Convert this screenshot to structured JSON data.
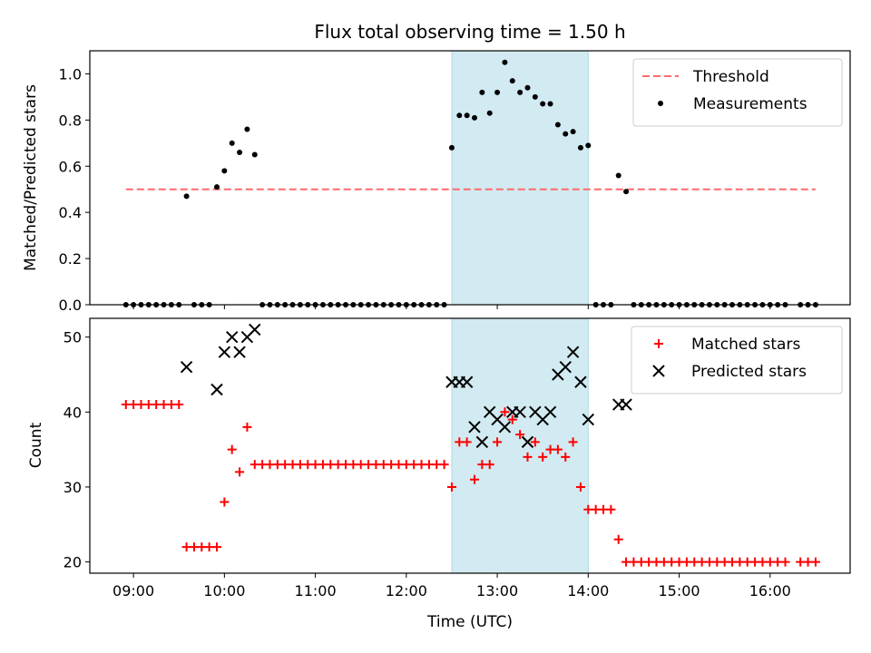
{
  "chart_data": {
    "title": "Flux total observing time = 1.50 h",
    "xlabel": "Time (UTC)",
    "x_ticks": [
      "09:00",
      "10:00",
      "11:00",
      "12:00",
      "13:00",
      "14:00",
      "15:00",
      "16:00"
    ],
    "shaded_interval": [
      "12:30",
      "14:00"
    ],
    "shade_color": "#add8e6",
    "panels": [
      {
        "type": "scatter",
        "ylabel": "Matched/Predicted stars",
        "ylim": [
          0,
          1.1
        ],
        "y_ticks": [
          "0.0",
          "0.2",
          "0.4",
          "0.6",
          "0.8",
          "1.0"
        ],
        "legend_position": "upper-right",
        "threshold": {
          "name": "Threshold",
          "value": 0.5,
          "x_range": [
            "08:55",
            "16:30"
          ],
          "color": "#ff6b6b",
          "style": "dashed"
        },
        "series": [
          {
            "name": "Measurements",
            "color": "#000000",
            "marker": "dot",
            "points": [
              [
                "08:55",
                0
              ],
              [
                "09:00",
                0
              ],
              [
                "09:05",
                0
              ],
              [
                "09:10",
                0
              ],
              [
                "09:15",
                0
              ],
              [
                "09:20",
                0
              ],
              [
                "09:25",
                0
              ],
              [
                "09:30",
                0
              ],
              [
                "09:35",
                0.47
              ],
              [
                "09:40",
                0
              ],
              [
                "09:45",
                0
              ],
              [
                "09:50",
                0
              ],
              [
                "09:55",
                0.51
              ],
              [
                "10:00",
                0.58
              ],
              [
                "10:05",
                0.7
              ],
              [
                "10:10",
                0.66
              ],
              [
                "10:15",
                0.76
              ],
              [
                "10:20",
                0.65
              ],
              [
                "10:25",
                0
              ],
              [
                "10:30",
                0
              ],
              [
                "10:35",
                0
              ],
              [
                "10:40",
                0
              ],
              [
                "10:45",
                0
              ],
              [
                "10:50",
                0
              ],
              [
                "10:55",
                0
              ],
              [
                "11:00",
                0
              ],
              [
                "11:05",
                0
              ],
              [
                "11:10",
                0
              ],
              [
                "11:15",
                0
              ],
              [
                "11:20",
                0
              ],
              [
                "11:25",
                0
              ],
              [
                "11:30",
                0
              ],
              [
                "11:35",
                0
              ],
              [
                "11:40",
                0
              ],
              [
                "11:45",
                0
              ],
              [
                "11:50",
                0
              ],
              [
                "11:55",
                0
              ],
              [
                "12:00",
                0
              ],
              [
                "12:05",
                0
              ],
              [
                "12:10",
                0
              ],
              [
                "12:15",
                0
              ],
              [
                "12:20",
                0
              ],
              [
                "12:25",
                0
              ],
              [
                "12:30",
                0.68
              ],
              [
                "12:35",
                0.82
              ],
              [
                "12:40",
                0.82
              ],
              [
                "12:45",
                0.81
              ],
              [
                "12:50",
                0.92
              ],
              [
                "12:55",
                0.83
              ],
              [
                "13:00",
                0.92
              ],
              [
                "13:05",
                1.05
              ],
              [
                "13:10",
                0.97
              ],
              [
                "13:15",
                0.92
              ],
              [
                "13:20",
                0.94
              ],
              [
                "13:25",
                0.9
              ],
              [
                "13:30",
                0.87
              ],
              [
                "13:35",
                0.87
              ],
              [
                "13:40",
                0.78
              ],
              [
                "13:45",
                0.74
              ],
              [
                "13:50",
                0.75
              ],
              [
                "13:55",
                0.68
              ],
              [
                "14:00",
                0.69
              ],
              [
                "14:05",
                0
              ],
              [
                "14:10",
                0
              ],
              [
                "14:15",
                0
              ],
              [
                "14:20",
                0.56
              ],
              [
                "14:25",
                0.49
              ],
              [
                "14:30",
                0
              ],
              [
                "14:35",
                0
              ],
              [
                "14:40",
                0
              ],
              [
                "14:45",
                0
              ],
              [
                "14:50",
                0
              ],
              [
                "14:55",
                0
              ],
              [
                "15:00",
                0
              ],
              [
                "15:05",
                0
              ],
              [
                "15:10",
                0
              ],
              [
                "15:15",
                0
              ],
              [
                "15:20",
                0
              ],
              [
                "15:25",
                0
              ],
              [
                "15:30",
                0
              ],
              [
                "15:35",
                0
              ],
              [
                "15:40",
                0
              ],
              [
                "15:45",
                0
              ],
              [
                "15:50",
                0
              ],
              [
                "15:55",
                0
              ],
              [
                "16:00",
                0
              ],
              [
                "16:05",
                0
              ],
              [
                "16:10",
                0
              ],
              [
                "16:20",
                0
              ],
              [
                "16:25",
                0
              ],
              [
                "16:30",
                0
              ]
            ]
          }
        ]
      },
      {
        "type": "scatter",
        "ylabel": "Count",
        "ylim": [
          18.5,
          52.5
        ],
        "y_ticks": [
          "20",
          "30",
          "40",
          "50"
        ],
        "legend_position": "upper-right",
        "series": [
          {
            "name": "Matched stars",
            "color": "#ff0000",
            "marker": "plus",
            "points": [
              [
                "08:55",
                41
              ],
              [
                "09:00",
                41
              ],
              [
                "09:05",
                41
              ],
              [
                "09:10",
                41
              ],
              [
                "09:15",
                41
              ],
              [
                "09:20",
                41
              ],
              [
                "09:25",
                41
              ],
              [
                "09:30",
                41
              ],
              [
                "09:35",
                22
              ],
              [
                "09:40",
                22
              ],
              [
                "09:45",
                22
              ],
              [
                "09:50",
                22
              ],
              [
                "09:55",
                22
              ],
              [
                "10:00",
                28
              ],
              [
                "10:05",
                35
              ],
              [
                "10:10",
                32
              ],
              [
                "10:15",
                38
              ],
              [
                "10:20",
                33
              ],
              [
                "10:25",
                33
              ],
              [
                "10:30",
                33
              ],
              [
                "10:35",
                33
              ],
              [
                "10:40",
                33
              ],
              [
                "10:45",
                33
              ],
              [
                "10:50",
                33
              ],
              [
                "10:55",
                33
              ],
              [
                "11:00",
                33
              ],
              [
                "11:05",
                33
              ],
              [
                "11:10",
                33
              ],
              [
                "11:15",
                33
              ],
              [
                "11:20",
                33
              ],
              [
                "11:25",
                33
              ],
              [
                "11:30",
                33
              ],
              [
                "11:35",
                33
              ],
              [
                "11:40",
                33
              ],
              [
                "11:45",
                33
              ],
              [
                "11:50",
                33
              ],
              [
                "11:55",
                33
              ],
              [
                "12:00",
                33
              ],
              [
                "12:05",
                33
              ],
              [
                "12:10",
                33
              ],
              [
                "12:15",
                33
              ],
              [
                "12:20",
                33
              ],
              [
                "12:25",
                33
              ],
              [
                "12:30",
                30
              ],
              [
                "12:35",
                36
              ],
              [
                "12:40",
                36
              ],
              [
                "12:45",
                31
              ],
              [
                "12:50",
                33
              ],
              [
                "12:55",
                33
              ],
              [
                "13:00",
                36
              ],
              [
                "13:05",
                40
              ],
              [
                "13:10",
                39
              ],
              [
                "13:15",
                37
              ],
              [
                "13:20",
                34
              ],
              [
                "13:25",
                36
              ],
              [
                "13:30",
                34
              ],
              [
                "13:35",
                35
              ],
              [
                "13:40",
                35
              ],
              [
                "13:45",
                34
              ],
              [
                "13:50",
                36
              ],
              [
                "13:55",
                30
              ],
              [
                "14:00",
                27
              ],
              [
                "14:05",
                27
              ],
              [
                "14:10",
                27
              ],
              [
                "14:15",
                27
              ],
              [
                "14:20",
                23
              ],
              [
                "14:25",
                20
              ],
              [
                "14:30",
                20
              ],
              [
                "14:35",
                20
              ],
              [
                "14:40",
                20
              ],
              [
                "14:45",
                20
              ],
              [
                "14:50",
                20
              ],
              [
                "14:55",
                20
              ],
              [
                "15:00",
                20
              ],
              [
                "15:05",
                20
              ],
              [
                "15:10",
                20
              ],
              [
                "15:15",
                20
              ],
              [
                "15:20",
                20
              ],
              [
                "15:25",
                20
              ],
              [
                "15:30",
                20
              ],
              [
                "15:35",
                20
              ],
              [
                "15:40",
                20
              ],
              [
                "15:45",
                20
              ],
              [
                "15:50",
                20
              ],
              [
                "15:55",
                20
              ],
              [
                "16:00",
                20
              ],
              [
                "16:05",
                20
              ],
              [
                "16:10",
                20
              ],
              [
                "16:20",
                20
              ],
              [
                "16:25",
                20
              ],
              [
                "16:30",
                20
              ]
            ]
          },
          {
            "name": "Predicted stars",
            "color": "#000000",
            "marker": "x",
            "points": [
              [
                "09:35",
                46
              ],
              [
                "09:55",
                43
              ],
              [
                "10:00",
                48
              ],
              [
                "10:05",
                50
              ],
              [
                "10:10",
                48
              ],
              [
                "10:15",
                50
              ],
              [
                "10:20",
                51
              ],
              [
                "12:30",
                44
              ],
              [
                "12:35",
                44
              ],
              [
                "12:40",
                44
              ],
              [
                "12:45",
                38
              ],
              [
                "12:50",
                36
              ],
              [
                "12:55",
                40
              ],
              [
                "13:00",
                39
              ],
              [
                "13:05",
                38
              ],
              [
                "13:10",
                40
              ],
              [
                "13:15",
                40
              ],
              [
                "13:20",
                36
              ],
              [
                "13:25",
                40
              ],
              [
                "13:30",
                39
              ],
              [
                "13:35",
                40
              ],
              [
                "13:40",
                45
              ],
              [
                "13:45",
                46
              ],
              [
                "13:50",
                48
              ],
              [
                "13:55",
                44
              ],
              [
                "14:00",
                39
              ],
              [
                "14:20",
                41
              ],
              [
                "14:25",
                41
              ]
            ]
          }
        ]
      }
    ]
  }
}
